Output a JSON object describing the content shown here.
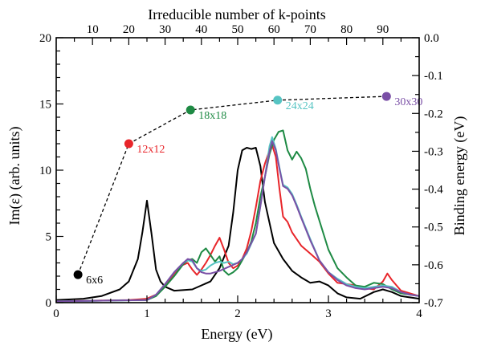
{
  "chart_data": {
    "type": "line",
    "xlabel": "Energy (eV)",
    "ylabel": "Im(ε) (arb. units)",
    "top_xlabel": "Irreducible number of k-points",
    "right_ylabel": "Binding energy (eV)",
    "xlim": [
      0,
      4
    ],
    "ylim": [
      0,
      20
    ],
    "top_xlim": [
      0,
      100
    ],
    "right_ylim": [
      -0.7,
      0.0
    ],
    "xticks": [
      "0",
      "1",
      "2",
      "3",
      "4"
    ],
    "yticks": [
      "0",
      "5",
      "10",
      "15",
      "20"
    ],
    "top_ticks": [
      "10",
      "20",
      "30",
      "40",
      "50",
      "60",
      "70",
      "80",
      "90"
    ],
    "right_ticks": [
      "0.0",
      "-0.1",
      "-0.2",
      "-0.3",
      "-0.4",
      "-0.5",
      "-0.6",
      "-0.7"
    ],
    "series": [
      {
        "color": "#000000",
        "points": [
          [
            0,
            0.2
          ],
          [
            0.3,
            0.3
          ],
          [
            0.5,
            0.5
          ],
          [
            0.7,
            1.0
          ],
          [
            0.8,
            1.6
          ],
          [
            0.9,
            3.3
          ],
          [
            0.95,
            5.3
          ],
          [
            1.0,
            7.7
          ],
          [
            1.05,
            5.2
          ],
          [
            1.1,
            2.5
          ],
          [
            1.15,
            1.6
          ],
          [
            1.2,
            1.2
          ],
          [
            1.3,
            0.9
          ],
          [
            1.5,
            1.0
          ],
          [
            1.7,
            1.6
          ],
          [
            1.8,
            2.6
          ],
          [
            1.9,
            4.3
          ],
          [
            1.95,
            6.8
          ],
          [
            2.0,
            10.0
          ],
          [
            2.05,
            11.5
          ],
          [
            2.1,
            11.7
          ],
          [
            2.15,
            11.6
          ],
          [
            2.2,
            11.7
          ],
          [
            2.25,
            10.3
          ],
          [
            2.3,
            7.6
          ],
          [
            2.4,
            4.5
          ],
          [
            2.5,
            3.3
          ],
          [
            2.6,
            2.4
          ],
          [
            2.7,
            1.9
          ],
          [
            2.8,
            1.5
          ],
          [
            2.9,
            1.6
          ],
          [
            3.0,
            1.3
          ],
          [
            3.1,
            0.7
          ],
          [
            3.2,
            0.4
          ],
          [
            3.35,
            0.3
          ],
          [
            3.5,
            0.8
          ],
          [
            3.6,
            1.0
          ],
          [
            3.7,
            0.8
          ],
          [
            3.8,
            0.5
          ],
          [
            4.0,
            0.3
          ]
        ]
      },
      {
        "color": "#e8252a",
        "points": [
          [
            0,
            0.1
          ],
          [
            0.8,
            0.2
          ],
          [
            1.0,
            0.3
          ],
          [
            1.1,
            0.6
          ],
          [
            1.2,
            1.2
          ],
          [
            1.3,
            2.2
          ],
          [
            1.38,
            2.8
          ],
          [
            1.45,
            3.0
          ],
          [
            1.5,
            2.5
          ],
          [
            1.55,
            2.1
          ],
          [
            1.6,
            2.5
          ],
          [
            1.65,
            3.0
          ],
          [
            1.7,
            3.6
          ],
          [
            1.75,
            4.3
          ],
          [
            1.8,
            4.9
          ],
          [
            1.85,
            4.0
          ],
          [
            1.9,
            3.0
          ],
          [
            1.95,
            2.6
          ],
          [
            2.0,
            2.8
          ],
          [
            2.05,
            3.3
          ],
          [
            2.1,
            4.1
          ],
          [
            2.15,
            5.4
          ],
          [
            2.2,
            7.2
          ],
          [
            2.25,
            9.2
          ],
          [
            2.3,
            10.5
          ],
          [
            2.35,
            11.5
          ],
          [
            2.38,
            11.9
          ],
          [
            2.42,
            11.0
          ],
          [
            2.46,
            8.6
          ],
          [
            2.5,
            6.5
          ],
          [
            2.55,
            6.1
          ],
          [
            2.6,
            5.3
          ],
          [
            2.7,
            4.3
          ],
          [
            2.8,
            3.7
          ],
          [
            2.9,
            3.1
          ],
          [
            3.0,
            2.2
          ],
          [
            3.1,
            1.5
          ],
          [
            3.2,
            1.4
          ],
          [
            3.3,
            1.3
          ],
          [
            3.4,
            1.1
          ],
          [
            3.5,
            1.0
          ],
          [
            3.6,
            1.6
          ],
          [
            3.65,
            2.2
          ],
          [
            3.7,
            1.7
          ],
          [
            3.8,
            0.9
          ],
          [
            3.9,
            0.7
          ],
          [
            4.0,
            0.5
          ]
        ]
      },
      {
        "color": "#1e8a44",
        "points": [
          [
            0,
            0.1
          ],
          [
            1.0,
            0.2
          ],
          [
            1.1,
            0.5
          ],
          [
            1.2,
            1.2
          ],
          [
            1.3,
            2.0
          ],
          [
            1.4,
            2.9
          ],
          [
            1.45,
            3.2
          ],
          [
            1.5,
            3.3
          ],
          [
            1.55,
            3.0
          ],
          [
            1.6,
            3.8
          ],
          [
            1.65,
            4.1
          ],
          [
            1.7,
            3.6
          ],
          [
            1.75,
            3.1
          ],
          [
            1.8,
            3.5
          ],
          [
            1.85,
            2.4
          ],
          [
            1.9,
            2.1
          ],
          [
            1.95,
            2.3
          ],
          [
            2.0,
            2.6
          ],
          [
            2.1,
            3.8
          ],
          [
            2.15,
            4.6
          ],
          [
            2.2,
            6.0
          ],
          [
            2.25,
            8.0
          ],
          [
            2.3,
            9.5
          ],
          [
            2.35,
            11.2
          ],
          [
            2.4,
            12.3
          ],
          [
            2.45,
            12.9
          ],
          [
            2.5,
            13.0
          ],
          [
            2.55,
            11.5
          ],
          [
            2.6,
            10.8
          ],
          [
            2.65,
            11.4
          ],
          [
            2.7,
            10.9
          ],
          [
            2.75,
            10.1
          ],
          [
            2.8,
            8.6
          ],
          [
            2.85,
            7.3
          ],
          [
            2.9,
            6.2
          ],
          [
            3.0,
            4.0
          ],
          [
            3.1,
            2.6
          ],
          [
            3.2,
            1.9
          ],
          [
            3.3,
            1.3
          ],
          [
            3.4,
            1.2
          ],
          [
            3.5,
            1.5
          ],
          [
            3.6,
            1.4
          ],
          [
            3.7,
            1.0
          ],
          [
            3.8,
            0.7
          ],
          [
            3.9,
            0.6
          ],
          [
            4.0,
            0.5
          ]
        ]
      },
      {
        "color": "#56c4c3",
        "points": [
          [
            0,
            0.1
          ],
          [
            1.0,
            0.2
          ],
          [
            1.1,
            0.6
          ],
          [
            1.2,
            1.4
          ],
          [
            1.3,
            2.3
          ],
          [
            1.4,
            3.0
          ],
          [
            1.45,
            3.2
          ],
          [
            1.5,
            3.1
          ],
          [
            1.55,
            2.6
          ],
          [
            1.6,
            2.4
          ],
          [
            1.65,
            2.5
          ],
          [
            1.7,
            2.8
          ],
          [
            1.75,
            3.0
          ],
          [
            1.8,
            3.1
          ],
          [
            1.85,
            3.0
          ],
          [
            1.9,
            3.1
          ],
          [
            1.95,
            2.9
          ],
          [
            2.0,
            3.0
          ],
          [
            2.05,
            3.3
          ],
          [
            2.1,
            3.7
          ],
          [
            2.2,
            5.2
          ],
          [
            2.25,
            7.3
          ],
          [
            2.3,
            9.5
          ],
          [
            2.35,
            11.8
          ],
          [
            2.38,
            12.5
          ],
          [
            2.42,
            11.6
          ],
          [
            2.46,
            10.2
          ],
          [
            2.5,
            8.9
          ],
          [
            2.55,
            8.7
          ],
          [
            2.6,
            8.2
          ],
          [
            2.65,
            7.4
          ],
          [
            2.7,
            6.5
          ],
          [
            2.8,
            4.8
          ],
          [
            2.9,
            3.2
          ],
          [
            3.0,
            2.3
          ],
          [
            3.1,
            1.8
          ],
          [
            3.2,
            1.4
          ],
          [
            3.3,
            1.2
          ],
          [
            3.4,
            1.1
          ],
          [
            3.5,
            1.2
          ],
          [
            3.6,
            1.3
          ],
          [
            3.7,
            1.2
          ],
          [
            3.8,
            0.8
          ],
          [
            3.9,
            0.6
          ],
          [
            4.0,
            0.5
          ]
        ]
      },
      {
        "color": "#7a4fa6",
        "points": [
          [
            0,
            0.1
          ],
          [
            1.0,
            0.2
          ],
          [
            1.1,
            0.6
          ],
          [
            1.2,
            1.4
          ],
          [
            1.3,
            2.3
          ],
          [
            1.4,
            3.0
          ],
          [
            1.45,
            3.3
          ],
          [
            1.5,
            3.2
          ],
          [
            1.55,
            2.6
          ],
          [
            1.6,
            2.3
          ],
          [
            1.65,
            2.2
          ],
          [
            1.7,
            2.2
          ],
          [
            1.8,
            2.4
          ],
          [
            1.9,
            2.7
          ],
          [
            2.0,
            3.0
          ],
          [
            2.05,
            3.3
          ],
          [
            2.1,
            3.8
          ],
          [
            2.2,
            5.2
          ],
          [
            2.25,
            7.3
          ],
          [
            2.3,
            9.5
          ],
          [
            2.35,
            11.4
          ],
          [
            2.38,
            12.2
          ],
          [
            2.42,
            11.5
          ],
          [
            2.46,
            10.1
          ],
          [
            2.5,
            8.8
          ],
          [
            2.55,
            8.6
          ],
          [
            2.6,
            8.1
          ],
          [
            2.65,
            7.3
          ],
          [
            2.7,
            6.4
          ],
          [
            2.8,
            4.7
          ],
          [
            2.9,
            3.2
          ],
          [
            3.0,
            2.3
          ],
          [
            3.1,
            1.7
          ],
          [
            3.2,
            1.3
          ],
          [
            3.3,
            1.1
          ],
          [
            3.4,
            1.0
          ],
          [
            3.5,
            1.1
          ],
          [
            3.6,
            1.2
          ],
          [
            3.7,
            1.1
          ],
          [
            3.8,
            0.8
          ],
          [
            3.9,
            0.6
          ],
          [
            4.0,
            0.5
          ]
        ]
      }
    ],
    "convergence": {
      "color": "#000000",
      "points": [
        {
          "label": "6x6",
          "k_points": 6,
          "binding": -0.626,
          "color": "#000000"
        },
        {
          "label": "12x12",
          "k_points": 20,
          "binding": -0.28,
          "color": "#e8252a"
        },
        {
          "label": "18x18",
          "k_points": 37,
          "binding": -0.191,
          "color": "#1e8a44"
        },
        {
          "label": "24x24",
          "k_points": 61,
          "binding": -0.165,
          "color": "#56c4c3"
        },
        {
          "label": "30x30",
          "k_points": 91,
          "binding": -0.155,
          "color": "#7a4fa6"
        }
      ]
    }
  }
}
